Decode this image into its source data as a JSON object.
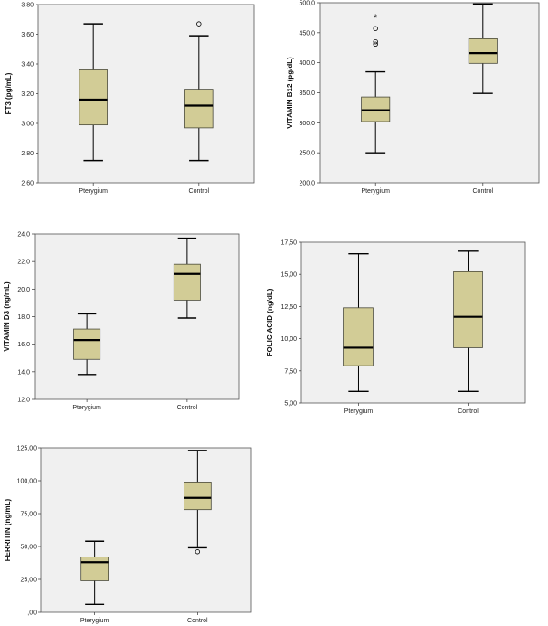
{
  "chart_data": [
    {
      "type": "boxplot",
      "ylabel": "FT3 (pg/mL)",
      "categories": [
        "Pterygium",
        "Control"
      ],
      "ylim": [
        2.6,
        3.8
      ],
      "yticks": [
        "2,60",
        "2,80",
        "3,00",
        "3,20",
        "3,40",
        "3,60",
        "3,80"
      ],
      "tick_values": [
        2.6,
        2.8,
        3.0,
        3.2,
        3.4,
        3.6,
        3.8
      ],
      "boxes": [
        {
          "min": 2.75,
          "q1": 2.99,
          "median": 3.16,
          "q3": 3.36,
          "max": 3.67,
          "outliers": [],
          "extremes": []
        },
        {
          "min": 2.75,
          "q1": 2.97,
          "median": 3.12,
          "q3": 3.23,
          "max": 3.59,
          "outliers": [
            3.67
          ],
          "extremes": []
        }
      ]
    },
    {
      "type": "boxplot",
      "ylabel": "VITAMIN B12 (pg/dL)",
      "categories": [
        "Pterygium",
        "Control"
      ],
      "ylim": [
        200,
        500
      ],
      "yticks": [
        "200,0",
        "250,0",
        "300,0",
        "350,0",
        "400,0",
        "450,0",
        "500,0"
      ],
      "tick_values": [
        200,
        250,
        300,
        350,
        400,
        450,
        500
      ],
      "boxes": [
        {
          "min": 250,
          "q1": 302,
          "median": 321,
          "q3": 343,
          "max": 385,
          "outliers": [
            457,
            435,
            431
          ],
          "extremes": [
            477
          ]
        },
        {
          "min": 349,
          "q1": 399,
          "median": 416,
          "q3": 440,
          "max": 498,
          "outliers": [],
          "extremes": []
        }
      ]
    },
    {
      "type": "boxplot",
      "ylabel": "VITAMIN D3 (ng/mL)",
      "categories": [
        "Pterygium",
        "Control"
      ],
      "ylim": [
        12,
        24
      ],
      "yticks": [
        "12,0",
        "14,0",
        "16,0",
        "18,0",
        "20,0",
        "22,0",
        "24,0"
      ],
      "tick_values": [
        12,
        14,
        16,
        18,
        20,
        22,
        24
      ],
      "boxes": [
        {
          "min": 13.8,
          "q1": 14.9,
          "median": 16.3,
          "q3": 17.1,
          "max": 18.2,
          "outliers": [],
          "extremes": []
        },
        {
          "min": 17.9,
          "q1": 19.2,
          "median": 21.1,
          "q3": 21.8,
          "max": 23.7,
          "outliers": [],
          "extremes": []
        }
      ]
    },
    {
      "type": "boxplot",
      "ylabel": "FOLIC ACID (ng/dL)",
      "categories": [
        "Pterygium",
        "Control"
      ],
      "ylim": [
        5,
        17.5
      ],
      "yticks": [
        "5,00",
        "7,50",
        "10,00",
        "12,50",
        "15,00",
        "17,50"
      ],
      "tick_values": [
        5,
        7.5,
        10,
        12.5,
        15,
        17.5
      ],
      "boxes": [
        {
          "min": 5.9,
          "q1": 7.9,
          "median": 9.3,
          "q3": 12.4,
          "max": 16.6,
          "outliers": [],
          "extremes": []
        },
        {
          "min": 5.9,
          "q1": 9.3,
          "median": 11.7,
          "q3": 15.2,
          "max": 16.8,
          "outliers": [],
          "extremes": []
        }
      ]
    },
    {
      "type": "boxplot",
      "ylabel": "FERRITIN (ng/mL)",
      "categories": [
        "Pterygium",
        "Control"
      ],
      "ylim": [
        0,
        125
      ],
      "yticks": [
        ",00",
        "25,00",
        "50,00",
        "75,00",
        "100,00",
        "125,00"
      ],
      "tick_values": [
        0,
        25,
        50,
        75,
        100,
        125
      ],
      "boxes": [
        {
          "min": 6,
          "q1": 24,
          "median": 38,
          "q3": 42,
          "max": 54,
          "outliers": [],
          "extremes": []
        },
        {
          "min": 49,
          "q1": 78,
          "median": 87,
          "q3": 99,
          "max": 123,
          "outliers": [
            46
          ],
          "extremes": []
        }
      ]
    }
  ],
  "colors": {
    "plot_background": "#f0f0f0",
    "box_fill": "#d2cc96",
    "box_stroke": "#4a4a3a",
    "median": "#000000",
    "frame": "#555555"
  }
}
